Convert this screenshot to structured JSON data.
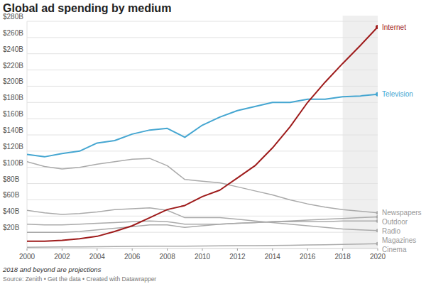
{
  "chart_data": {
    "type": "line",
    "title": "Global ad spending by medium",
    "note": "2018 and beyond are projections",
    "source": "Source: Zenith • Get the data • Created with Datawrapper",
    "x": [
      2000,
      2001,
      2002,
      2003,
      2004,
      2005,
      2006,
      2007,
      2008,
      2009,
      2010,
      2011,
      2012,
      2013,
      2014,
      2015,
      2016,
      2017,
      2018,
      2019,
      2020
    ],
    "projection_range": [
      2018,
      2020
    ],
    "series": [
      {
        "name": "Internet",
        "color": "#9e1b1b",
        "values": [
          9,
          9,
          10,
          12,
          15,
          21,
          28,
          38,
          48,
          53,
          64,
          72,
          87,
          102,
          124,
          150,
          180,
          205,
          228,
          250,
          273
        ]
      },
      {
        "name": "Television",
        "color": "#45a6d1",
        "values": [
          116,
          113,
          117,
          120,
          130,
          133,
          141,
          146,
          148,
          137,
          152,
          162,
          170,
          175,
          180,
          180,
          184,
          184,
          187,
          188,
          190
        ]
      },
      {
        "name": "Newspapers",
        "color": "#aaaaaa",
        "values": [
          107,
          101,
          98,
          100,
          104,
          107,
          110,
          111,
          102,
          85,
          83,
          81,
          76,
          71,
          66,
          60,
          55,
          51,
          48,
          46,
          44
        ]
      },
      {
        "name": "Outdoor",
        "color": "#aaaaaa",
        "values": [
          20,
          20,
          20,
          21,
          23,
          25,
          27,
          29,
          29,
          26,
          28,
          30,
          31,
          32,
          33,
          34,
          35,
          36,
          37,
          38,
          39
        ]
      },
      {
        "name": "Radio",
        "color": "#aaaaaa",
        "values": [
          30,
          29,
          29,
          30,
          31,
          32,
          33,
          34,
          33,
          30,
          30,
          30,
          31,
          32,
          33,
          33,
          33,
          33,
          34,
          34,
          34
        ]
      },
      {
        "name": "Magazines",
        "color": "#aaaaaa",
        "values": [
          47,
          44,
          42,
          43,
          45,
          48,
          49,
          50,
          47,
          38,
          38,
          38,
          36,
          34,
          32,
          30,
          28,
          26,
          24,
          23,
          22
        ]
      },
      {
        "name": "Cinema",
        "color": "#aaaaaa",
        "values": [
          1.5,
          1.7,
          1.9,
          2,
          2.2,
          2.4,
          2.6,
          2.8,
          2.9,
          2.8,
          3,
          3.2,
          3.4,
          3.6,
          3.8,
          4,
          4.3,
          4.7,
          5.1,
          5.5,
          6
        ]
      }
    ],
    "xlim": [
      2000,
      2020
    ],
    "xticks": [
      2000,
      2002,
      2004,
      2006,
      2008,
      2010,
      2012,
      2014,
      2016,
      2018,
      2020
    ],
    "ylim": [
      0,
      280
    ],
    "yticks": [
      {
        "value": 20,
        "label": "$20B"
      },
      {
        "value": 40,
        "label": "$40B"
      },
      {
        "value": 60,
        "label": "$60B"
      },
      {
        "value": 80,
        "label": "$80B"
      },
      {
        "value": 100,
        "label": "$100B"
      },
      {
        "value": 120,
        "label": "$120B"
      },
      {
        "value": 140,
        "label": "$140B"
      },
      {
        "value": 160,
        "label": "$160B"
      },
      {
        "value": 180,
        "label": "$180B"
      },
      {
        "value": 200,
        "label": "$200B"
      },
      {
        "value": 220,
        "label": "$220B"
      },
      {
        "value": 240,
        "label": "$240B"
      },
      {
        "value": 260,
        "label": "$260B"
      },
      {
        "value": 280,
        "label": "$280B"
      }
    ],
    "grid": true
  }
}
